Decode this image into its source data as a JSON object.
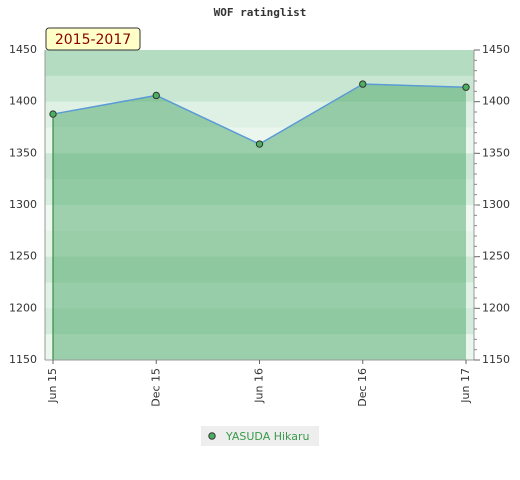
{
  "chart_data": {
    "type": "line",
    "title": "WOF ratinglist",
    "annotation": "2015-2017",
    "categories": [
      "Jun 15",
      "Dec 15",
      "Jun 16",
      "Dec 16",
      "Jun 17"
    ],
    "series": [
      {
        "name": "YASUDA Hikaru",
        "color": "#5b9bd5",
        "values": [
          1388,
          1406,
          1359,
          1417,
          1414
        ]
      }
    ],
    "ylim": [
      1150,
      1450
    ],
    "yticks": [
      1150,
      1200,
      1250,
      1300,
      1350,
      1400,
      1450
    ]
  }
}
